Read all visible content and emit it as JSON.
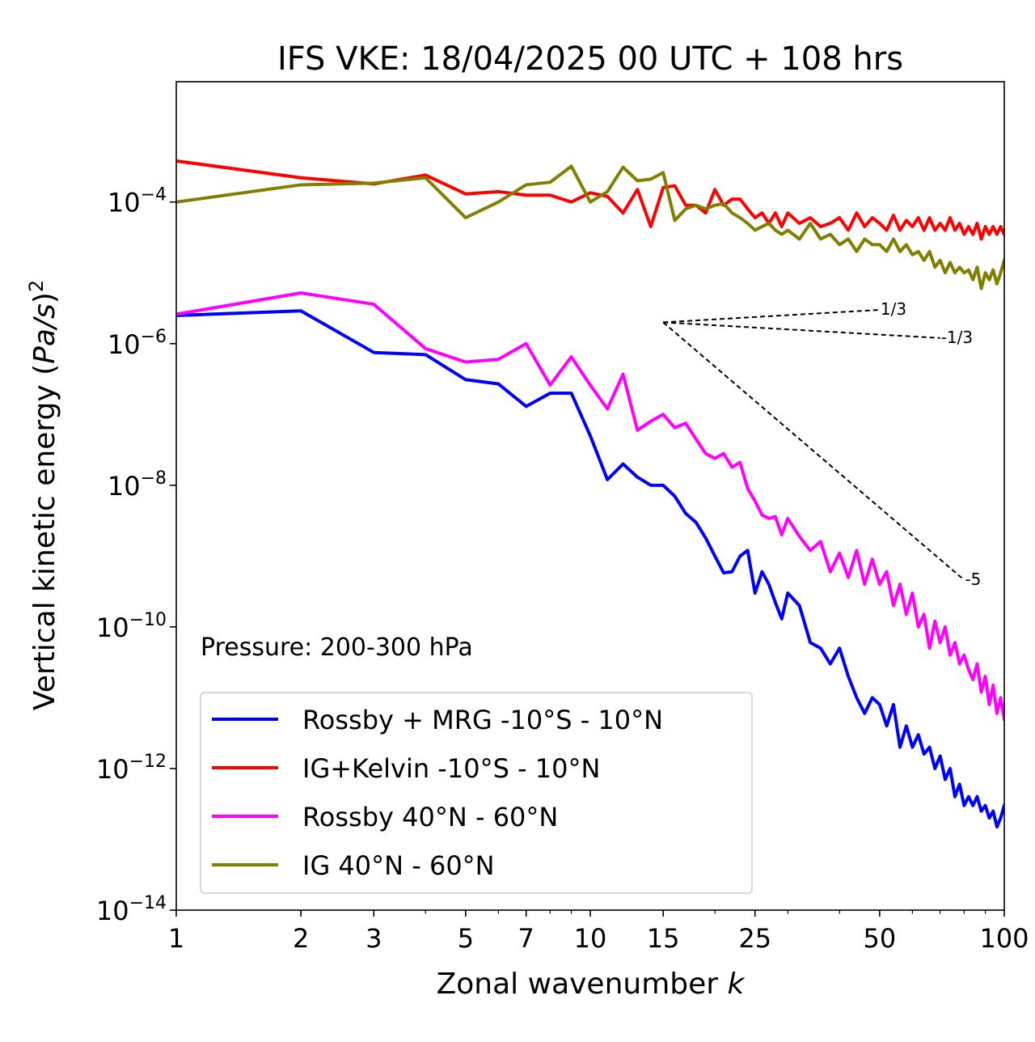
{
  "chart_data": {
    "type": "line",
    "title": "IFS VKE: 18/04/2025 00 UTC + 108 hrs",
    "xlabel_prefix": "Zonal wavenumber ",
    "xlabel_var": "k",
    "ylabel_prefix": "Vertical kinetic energy (",
    "ylabel_var": "Pa/s",
    "ylabel_suffix": ")",
    "ylabel_exp": "2",
    "xscale": "log",
    "yscale": "log",
    "xlim": [
      1,
      100
    ],
    "ylim": [
      1e-14,
      0.005
    ],
    "grid": false,
    "legend_position": "lower-left",
    "x_ticks": [
      {
        "value": 1,
        "label": "1"
      },
      {
        "value": 2,
        "label": "2"
      },
      {
        "value": 3,
        "label": "3"
      },
      {
        "value": 5,
        "label": "5"
      },
      {
        "value": 7,
        "label": "7"
      },
      {
        "value": 10,
        "label": "10"
      },
      {
        "value": 15,
        "label": "15"
      },
      {
        "value": 25,
        "label": "25"
      },
      {
        "value": 50,
        "label": "50"
      },
      {
        "value": 100,
        "label": "100"
      }
    ],
    "y_ticks": [
      {
        "value": 1e-14,
        "base": "10",
        "exp": "−14"
      },
      {
        "value": 1e-12,
        "base": "10",
        "exp": "−12"
      },
      {
        "value": 1e-10,
        "base": "10",
        "exp": "−10"
      },
      {
        "value": 1e-08,
        "base": "10",
        "exp": "−8"
      },
      {
        "value": 1e-06,
        "base": "10",
        "exp": "−6"
      },
      {
        "value": 0.0001,
        "base": "10",
        "exp": "−4"
      }
    ],
    "annotation": "Pressure: 200-300 hPa",
    "slope_lines": [
      {
        "label": "1/3",
        "from": [
          15,
          2e-06
        ],
        "to": [
          50,
          3e-06
        ]
      },
      {
        "label": "-1/3",
        "from": [
          15,
          2e-06
        ],
        "to": [
          70,
          1.2e-06
        ]
      },
      {
        "label": "-5",
        "from": [
          15,
          2e-06
        ],
        "to": [
          80,
          4.6e-10
        ]
      }
    ],
    "series": [
      {
        "name": "Rossby + MRG -10°S - 10°N",
        "color": "#0000ff",
        "x": [
          1,
          2,
          3,
          4,
          5,
          6,
          7,
          8,
          9,
          10,
          11,
          12,
          13,
          14,
          15,
          16,
          17,
          18,
          19,
          20,
          21,
          22,
          23,
          24,
          25,
          26,
          27,
          28,
          29,
          30,
          32,
          34,
          36,
          38,
          40,
          42,
          44,
          46,
          48,
          50,
          52,
          54,
          56,
          58,
          60,
          62,
          64,
          66,
          68,
          70,
          72,
          74,
          76,
          78,
          80,
          82,
          84,
          86,
          88,
          90,
          92,
          94,
          96,
          98,
          100
        ],
        "y": [
          2.5e-06,
          2.9e-06,
          7.5e-07,
          7e-07,
          3.1e-07,
          2.7e-07,
          1.3e-07,
          2e-07,
          2e-07,
          5e-08,
          1.2e-08,
          2e-08,
          1.3e-08,
          1e-08,
          1e-08,
          7e-09,
          4e-09,
          3e-09,
          1.8e-09,
          1e-09,
          5.8e-10,
          6e-10,
          1e-09,
          1.2e-09,
          3e-10,
          6e-10,
          4e-10,
          2.2e-10,
          1.3e-10,
          3e-10,
          2e-10,
          6e-11,
          5e-11,
          3e-11,
          5e-11,
          2e-11,
          1e-11,
          6e-12,
          1e-11,
          8e-12,
          4e-12,
          8e-12,
          2e-12,
          4e-12,
          2e-12,
          3e-12,
          1.6e-12,
          2e-12,
          1e-12,
          1.5e-12,
          7e-13,
          1e-12,
          4e-13,
          6e-13,
          3e-13,
          4e-13,
          3e-13,
          4e-13,
          2.5e-13,
          3e-13,
          2e-13,
          2.5e-13,
          1.5e-13,
          2e-13,
          3e-13
        ]
      },
      {
        "name": "IG+Kelvin -10°S - 10°N",
        "color": "#ff0000",
        "x": [
          1,
          2,
          3,
          4,
          5,
          6,
          7,
          8,
          9,
          10,
          11,
          12,
          13,
          14,
          15,
          16,
          17,
          18,
          19,
          20,
          21,
          22,
          23,
          24,
          25,
          26,
          27,
          28,
          29,
          30,
          32,
          34,
          36,
          38,
          40,
          42,
          44,
          46,
          48,
          50,
          52,
          54,
          56,
          58,
          60,
          62,
          64,
          66,
          68,
          70,
          72,
          74,
          76,
          78,
          80,
          82,
          84,
          86,
          88,
          90,
          92,
          94,
          96,
          98,
          100
        ],
        "y": [
          0.00038,
          0.00022,
          0.00018,
          0.00024,
          0.00013,
          0.00014,
          0.000125,
          0.000125,
          0.0001,
          0.000135,
          0.00012,
          7e-05,
          0.00015,
          4.5e-05,
          0.00016,
          0.00017,
          9e-05,
          9e-05,
          7e-05,
          0.00015,
          9e-05,
          0.00011,
          0.00011,
          8e-05,
          6e-05,
          7e-05,
          5e-05,
          7e-05,
          4.5e-05,
          7e-05,
          5e-05,
          6e-05,
          4.5e-05,
          5e-05,
          6e-05,
          4e-05,
          7e-05,
          4.5e-05,
          6e-05,
          5e-05,
          4e-05,
          6.5e-05,
          4e-05,
          5.5e-05,
          4.5e-05,
          6e-05,
          4e-05,
          6e-05,
          4e-05,
          5e-05,
          4e-05,
          6e-05,
          4e-05,
          5e-05,
          3.5e-05,
          4.5e-05,
          3.5e-05,
          5e-05,
          3e-05,
          4.5e-05,
          3.5e-05,
          4.5e-05,
          3.5e-05,
          4.5e-05,
          3.5e-05
        ]
      },
      {
        "name": "Rossby 40°N - 60°N",
        "color": "#ff00ff",
        "x": [
          1,
          2,
          3,
          4,
          5,
          6,
          7,
          8,
          9,
          10,
          11,
          12,
          13,
          14,
          15,
          16,
          17,
          18,
          19,
          20,
          21,
          22,
          23,
          24,
          25,
          26,
          27,
          28,
          29,
          30,
          32,
          34,
          36,
          38,
          40,
          42,
          44,
          46,
          48,
          50,
          52,
          54,
          56,
          58,
          60,
          62,
          64,
          66,
          68,
          70,
          72,
          74,
          76,
          78,
          80,
          82,
          84,
          86,
          88,
          90,
          92,
          94,
          96,
          98,
          100
        ],
        "y": [
          2.6e-06,
          5.2e-06,
          3.6e-06,
          8.5e-07,
          5.5e-07,
          6e-07,
          1e-06,
          2.6e-07,
          6.5e-07,
          2.6e-07,
          1.2e-07,
          3.7e-07,
          6e-08,
          8e-08,
          1e-07,
          6.5e-08,
          7.5e-08,
          4.5e-08,
          2.8e-08,
          2.4e-08,
          2.8e-08,
          1.8e-08,
          2.1e-08,
          9e-09,
          6e-09,
          3.8e-09,
          3.4e-09,
          3.6e-09,
          2e-09,
          3.4e-09,
          1.9e-09,
          1.2e-09,
          1.6e-09,
          6e-10,
          1.1e-09,
          5e-10,
          1.2e-09,
          4e-10,
          9e-10,
          4e-10,
          6e-10,
          2e-10,
          4e-10,
          1.5e-10,
          3e-10,
          1e-10,
          1.5e-10,
          5e-11,
          1.2e-10,
          6e-11,
          1e-10,
          4e-11,
          6e-11,
          3e-11,
          4e-11,
          2.5e-11,
          1.8e-11,
          3e-11,
          1.2e-11,
          2e-11,
          8e-12,
          1.5e-11,
          6e-12,
          1e-11,
          5e-12
        ]
      },
      {
        "name": "IG 40°N - 60°N",
        "color": "#808000",
        "x": [
          1,
          2,
          3,
          4,
          5,
          6,
          7,
          8,
          9,
          10,
          11,
          12,
          13,
          14,
          15,
          16,
          17,
          18,
          19,
          20,
          21,
          22,
          23,
          24,
          25,
          26,
          27,
          28,
          29,
          30,
          32,
          34,
          36,
          38,
          40,
          42,
          44,
          46,
          48,
          50,
          52,
          54,
          56,
          58,
          60,
          62,
          64,
          66,
          68,
          70,
          72,
          74,
          76,
          78,
          80,
          82,
          84,
          86,
          88,
          90,
          92,
          94,
          96,
          98,
          100
        ],
        "y": [
          0.0001,
          0.000175,
          0.000185,
          0.00022,
          6e-05,
          0.0001,
          0.000175,
          0.00019,
          0.00032,
          0.0001,
          0.00014,
          0.00031,
          0.0002,
          0.00021,
          0.00026,
          5.5e-05,
          8e-05,
          9e-05,
          8e-05,
          9e-05,
          9.5e-05,
          7e-05,
          6e-05,
          5e-05,
          4e-05,
          4.5e-05,
          5e-05,
          4e-05,
          3.5e-05,
          4e-05,
          3e-05,
          5e-05,
          3e-05,
          3.5e-05,
          2.5e-05,
          3e-05,
          2e-05,
          3e-05,
          2.5e-05,
          2.5e-05,
          2e-05,
          3e-05,
          2e-05,
          2.5e-05,
          1.8e-05,
          2e-05,
          1.5e-05,
          2e-05,
          1.2e-05,
          1.5e-05,
          1e-05,
          1.4e-05,
          1e-05,
          1.2e-05,
          1e-05,
          1.1e-05,
          8e-06,
          1.2e-05,
          6e-06,
          1e-05,
          8e-06,
          1.1e-05,
          7e-06,
          1e-05,
          1.5e-05
        ]
      }
    ]
  }
}
